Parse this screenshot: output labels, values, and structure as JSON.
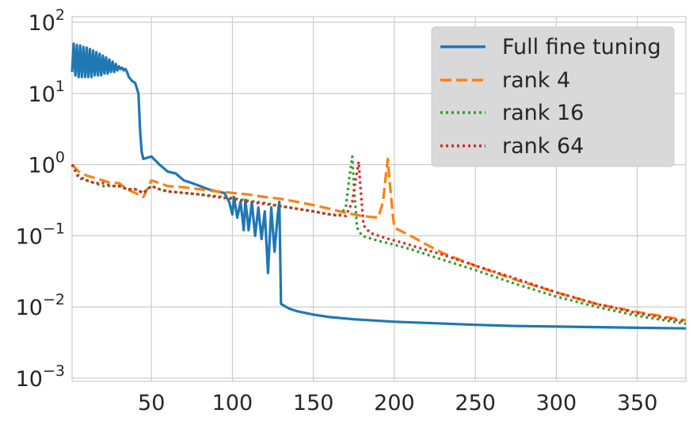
{
  "chart_data": {
    "type": "line",
    "title": "",
    "xlabel": "",
    "ylabel": "",
    "xlim": [
      1,
      380
    ],
    "ylim": [
      0.0009,
      120
    ],
    "yscale": "log",
    "grid": true,
    "legend_position": "top-right",
    "x_ticks": [
      {
        "value": 50,
        "label": "50"
      },
      {
        "value": 100,
        "label": "100"
      },
      {
        "value": 150,
        "label": "150"
      },
      {
        "value": 200,
        "label": "200"
      },
      {
        "value": 250,
        "label": "250"
      },
      {
        "value": 300,
        "label": "300"
      },
      {
        "value": 350,
        "label": "350"
      }
    ],
    "y_ticks": [
      {
        "value": 0.001,
        "base": "10",
        "exp": "−3"
      },
      {
        "value": 0.01,
        "base": "10",
        "exp": "−2"
      },
      {
        "value": 0.1,
        "base": "10",
        "exp": "−1"
      },
      {
        "value": 1,
        "base": "10",
        "exp": "0"
      },
      {
        "value": 10,
        "base": "10",
        "exp": "1"
      },
      {
        "value": 100,
        "base": "10",
        "exp": "2"
      }
    ],
    "series": [
      {
        "name": "Full fine tuning",
        "color": "#1f77b4",
        "style": "solid",
        "points": [
          [
            1,
            20
          ],
          [
            2,
            50
          ],
          [
            3,
            18
          ],
          [
            4,
            48
          ],
          [
            5,
            17
          ],
          [
            6,
            47
          ],
          [
            7,
            17
          ],
          [
            8,
            45
          ],
          [
            9,
            17
          ],
          [
            10,
            44
          ],
          [
            11,
            17
          ],
          [
            12,
            42
          ],
          [
            13,
            17
          ],
          [
            14,
            40
          ],
          [
            15,
            18
          ],
          [
            16,
            38
          ],
          [
            17,
            18
          ],
          [
            18,
            36
          ],
          [
            19,
            18
          ],
          [
            20,
            34
          ],
          [
            21,
            19
          ],
          [
            22,
            32
          ],
          [
            23,
            19
          ],
          [
            24,
            30
          ],
          [
            25,
            20
          ],
          [
            26,
            28
          ],
          [
            27,
            20
          ],
          [
            28,
            26
          ],
          [
            29,
            21
          ],
          [
            30,
            24
          ],
          [
            31,
            22
          ],
          [
            32,
            23
          ],
          [
            33,
            21
          ],
          [
            34,
            22
          ],
          [
            35,
            20
          ],
          [
            36,
            17
          ],
          [
            37,
            16
          ],
          [
            38,
            15
          ],
          [
            40,
            14
          ],
          [
            42,
            10
          ],
          [
            43,
            3
          ],
          [
            44,
            1.5
          ],
          [
            45,
            1.2
          ],
          [
            50,
            1.3
          ],
          [
            55,
            1.0
          ],
          [
            60,
            0.8
          ],
          [
            65,
            0.75
          ],
          [
            70,
            0.6
          ],
          [
            75,
            0.55
          ],
          [
            80,
            0.5
          ],
          [
            85,
            0.45
          ],
          [
            90,
            0.42
          ],
          [
            95,
            0.4
          ],
          [
            98,
            0.3
          ],
          [
            100,
            0.2
          ],
          [
            101,
            0.35
          ],
          [
            103,
            0.18
          ],
          [
            105,
            0.3
          ],
          [
            107,
            0.12
          ],
          [
            108,
            0.32
          ],
          [
            110,
            0.12
          ],
          [
            112,
            0.3
          ],
          [
            114,
            0.1
          ],
          [
            116,
            0.25
          ],
          [
            118,
            0.09
          ],
          [
            120,
            0.22
          ],
          [
            122,
            0.03
          ],
          [
            124,
            0.25
          ],
          [
            126,
            0.06
          ],
          [
            128,
            0.2
          ],
          [
            129,
            0.3
          ],
          [
            130,
            0.011
          ],
          [
            135,
            0.0095
          ],
          [
            140,
            0.0087
          ],
          [
            150,
            0.0078
          ],
          [
            160,
            0.0072
          ],
          [
            175,
            0.0067
          ],
          [
            200,
            0.0062
          ],
          [
            225,
            0.0059
          ],
          [
            250,
            0.0056
          ],
          [
            275,
            0.0054
          ],
          [
            300,
            0.0053
          ],
          [
            325,
            0.0052
          ],
          [
            350,
            0.0051
          ],
          [
            380,
            0.005
          ]
        ]
      },
      {
        "name": "rank 4",
        "color": "#ff7f0e",
        "style": "dashed",
        "points": [
          [
            1,
            1.0
          ],
          [
            5,
            0.8
          ],
          [
            10,
            0.7
          ],
          [
            15,
            0.65
          ],
          [
            20,
            0.6
          ],
          [
            25,
            0.55
          ],
          [
            30,
            0.55
          ],
          [
            35,
            0.45
          ],
          [
            40,
            0.4
          ],
          [
            45,
            0.35
          ],
          [
            50,
            0.6
          ],
          [
            55,
            0.55
          ],
          [
            60,
            0.5
          ],
          [
            70,
            0.48
          ],
          [
            80,
            0.45
          ],
          [
            90,
            0.42
          ],
          [
            100,
            0.4
          ],
          [
            110,
            0.38
          ],
          [
            120,
            0.35
          ],
          [
            130,
            0.33
          ],
          [
            140,
            0.3
          ],
          [
            150,
            0.27
          ],
          [
            160,
            0.24
          ],
          [
            170,
            0.21
          ],
          [
            180,
            0.19
          ],
          [
            190,
            0.18
          ],
          [
            193,
            0.3
          ],
          [
            195,
            0.8
          ],
          [
            196,
            1.2
          ],
          [
            197,
            0.6
          ],
          [
            199,
            0.2
          ],
          [
            200,
            0.13
          ],
          [
            210,
            0.1
          ],
          [
            220,
            0.075
          ],
          [
            230,
            0.057
          ],
          [
            250,
            0.038
          ],
          [
            275,
            0.024
          ],
          [
            300,
            0.016
          ],
          [
            325,
            0.011
          ],
          [
            350,
            0.0085
          ],
          [
            380,
            0.0065
          ]
        ]
      },
      {
        "name": "rank 16",
        "color": "#2ca02c",
        "style": "dotted",
        "points": [
          [
            1,
            1.0
          ],
          [
            5,
            0.7
          ],
          [
            10,
            0.6
          ],
          [
            15,
            0.55
          ],
          [
            20,
            0.5
          ],
          [
            25,
            0.5
          ],
          [
            30,
            0.5
          ],
          [
            35,
            0.45
          ],
          [
            40,
            0.45
          ],
          [
            45,
            0.4
          ],
          [
            50,
            0.5
          ],
          [
            55,
            0.45
          ],
          [
            60,
            0.42
          ],
          [
            70,
            0.4
          ],
          [
            80,
            0.38
          ],
          [
            90,
            0.36
          ],
          [
            100,
            0.34
          ],
          [
            110,
            0.31
          ],
          [
            120,
            0.29
          ],
          [
            130,
            0.26
          ],
          [
            140,
            0.24
          ],
          [
            150,
            0.22
          ],
          [
            160,
            0.2
          ],
          [
            166,
            0.19
          ],
          [
            170,
            0.25
          ],
          [
            172,
            0.6
          ],
          [
            174,
            1.3
          ],
          [
            175,
            0.5
          ],
          [
            177,
            0.13
          ],
          [
            180,
            0.1
          ],
          [
            190,
            0.085
          ],
          [
            200,
            0.075
          ],
          [
            210,
            0.065
          ],
          [
            225,
            0.05
          ],
          [
            250,
            0.033
          ],
          [
            275,
            0.021
          ],
          [
            300,
            0.014
          ],
          [
            325,
            0.01
          ],
          [
            350,
            0.0075
          ],
          [
            380,
            0.0058
          ]
        ]
      },
      {
        "name": "rank 64",
        "color": "#d62728",
        "style": "dotted",
        "points": [
          [
            1,
            1.0
          ],
          [
            5,
            0.65
          ],
          [
            10,
            0.6
          ],
          [
            15,
            0.55
          ],
          [
            20,
            0.55
          ],
          [
            25,
            0.5
          ],
          [
            30,
            0.5
          ],
          [
            35,
            0.45
          ],
          [
            40,
            0.45
          ],
          [
            45,
            0.4
          ],
          [
            50,
            0.5
          ],
          [
            55,
            0.45
          ],
          [
            60,
            0.42
          ],
          [
            70,
            0.4
          ],
          [
            80,
            0.38
          ],
          [
            90,
            0.35
          ],
          [
            100,
            0.33
          ],
          [
            110,
            0.3
          ],
          [
            120,
            0.28
          ],
          [
            130,
            0.26
          ],
          [
            140,
            0.24
          ],
          [
            150,
            0.22
          ],
          [
            160,
            0.2
          ],
          [
            170,
            0.19
          ],
          [
            174,
            0.3
          ],
          [
            176,
            0.6
          ],
          [
            178,
            1.1
          ],
          [
            179,
            0.5
          ],
          [
            181,
            0.14
          ],
          [
            185,
            0.11
          ],
          [
            195,
            0.092
          ],
          [
            205,
            0.08
          ],
          [
            215,
            0.068
          ],
          [
            230,
            0.054
          ],
          [
            250,
            0.038
          ],
          [
            275,
            0.025
          ],
          [
            300,
            0.016
          ],
          [
            325,
            0.011
          ],
          [
            350,
            0.0082
          ],
          [
            380,
            0.0062
          ]
        ]
      }
    ]
  }
}
